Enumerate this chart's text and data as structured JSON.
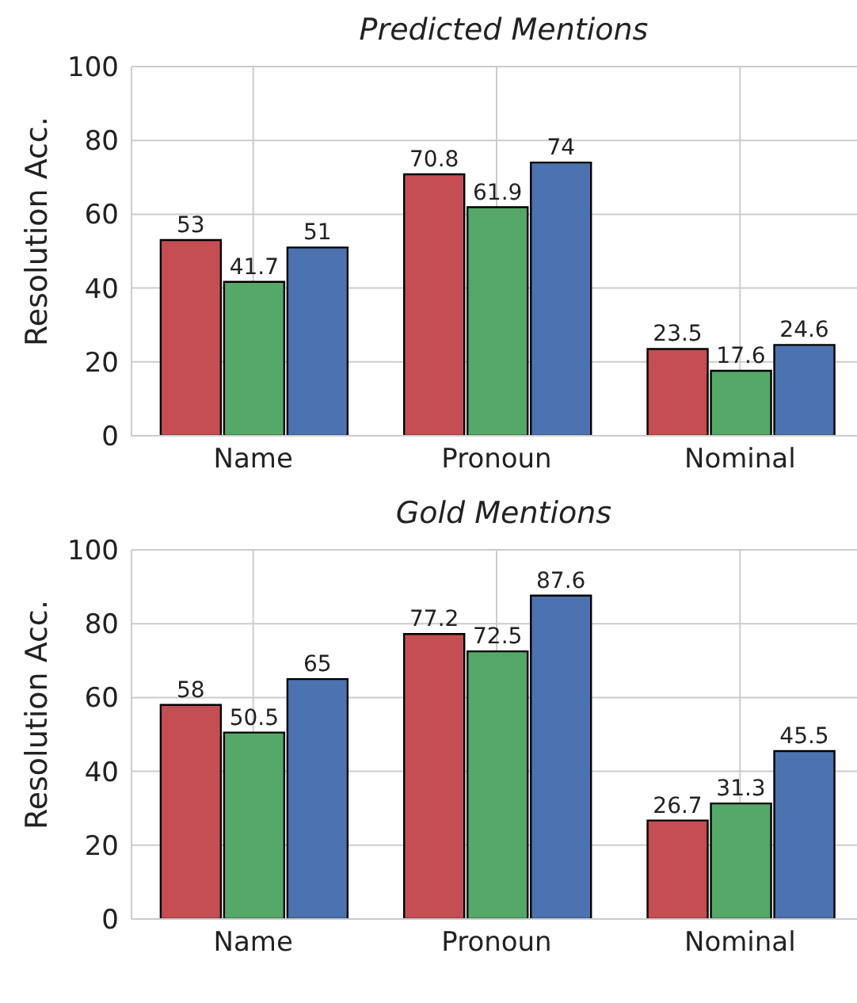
{
  "chart_data": [
    {
      "type": "bar",
      "title": "Predicted Mentions",
      "ylabel": "Resolution Acc.",
      "categories": [
        "Name",
        "Pronoun",
        "Nominal"
      ],
      "series": [
        {
          "color": "#c44e52",
          "values": [
            53,
            70.8,
            23.5
          ]
        },
        {
          "color": "#55a868",
          "values": [
            41.7,
            61.9,
            17.6
          ]
        },
        {
          "color": "#4c72b0",
          "values": [
            51,
            74,
            24.6
          ]
        }
      ],
      "ylim": [
        0,
        100
      ],
      "yticks": [
        0,
        20,
        40,
        60,
        80,
        100
      ],
      "grid": true,
      "data_labels": true
    },
    {
      "type": "bar",
      "title": "Gold Mentions",
      "ylabel": "Resolution Acc.",
      "categories": [
        "Name",
        "Pronoun",
        "Nominal"
      ],
      "series": [
        {
          "color": "#c44e52",
          "values": [
            58,
            77.2,
            26.7
          ]
        },
        {
          "color": "#55a868",
          "values": [
            50.5,
            72.5,
            31.3
          ]
        },
        {
          "color": "#4c72b0",
          "values": [
            65,
            87.6,
            45.5
          ]
        }
      ],
      "ylim": [
        0,
        100
      ],
      "yticks": [
        0,
        20,
        40,
        60,
        80,
        100
      ],
      "grid": true,
      "data_labels": true
    }
  ]
}
